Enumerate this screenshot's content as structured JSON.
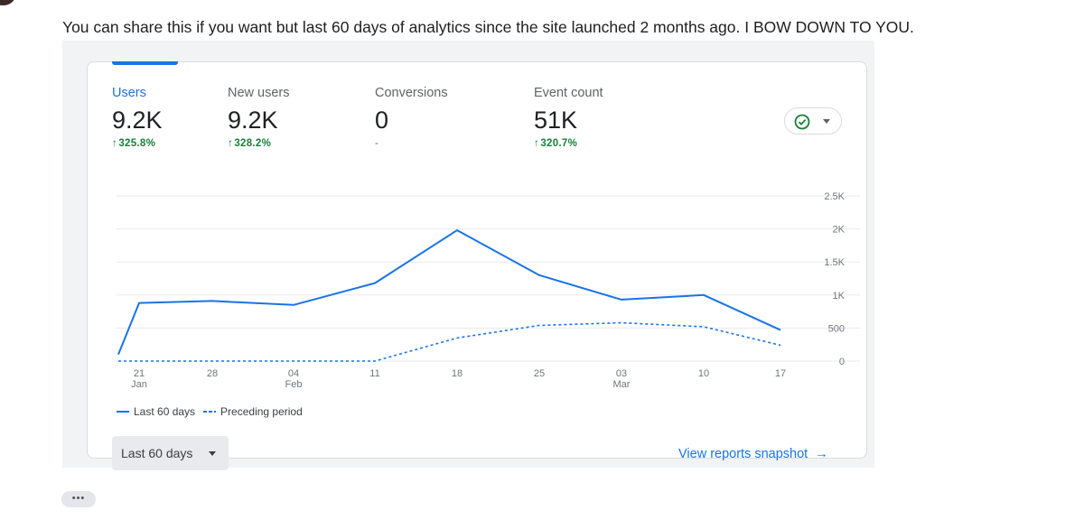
{
  "message": {
    "text": "You can share this if you want but last 60 days of analytics since the site launched 2 months ago. I BOW DOWN TO YOU."
  },
  "card": {
    "metrics": [
      {
        "label": "Users",
        "value": "9.2K",
        "change": "325.8%",
        "direction": "up",
        "selected": true
      },
      {
        "label": "New users",
        "value": "9.2K",
        "change": "328.2%",
        "direction": "up",
        "selected": false
      },
      {
        "label": "Conversions",
        "value": "0",
        "change": "-",
        "direction": "none",
        "selected": false
      },
      {
        "label": "Event count",
        "value": "51K",
        "change": "320.7%",
        "direction": "up",
        "selected": false
      }
    ],
    "status_icon": "check-circle-icon",
    "range_select": {
      "label": "Last 60 days"
    },
    "view_link": {
      "label": "View reports snapshot",
      "arrow": "→"
    }
  },
  "more_button": {
    "label": "•••"
  },
  "colors": {
    "accent": "#1a73e8",
    "positive": "#188038",
    "check": "#188038",
    "grid": "#e8eaed"
  },
  "chart_data": {
    "type": "line",
    "x": [
      "Jan 20",
      "Jan 21",
      "Jan 28",
      "Feb 04",
      "Feb 11",
      "Feb 18",
      "Feb 25",
      "Mar 03",
      "Mar 10",
      "Mar 17"
    ],
    "x_ticks": [
      {
        "day": "21",
        "month": "Jan"
      },
      {
        "day": "28",
        "month": ""
      },
      {
        "day": "04",
        "month": "Feb"
      },
      {
        "day": "11",
        "month": ""
      },
      {
        "day": "18",
        "month": ""
      },
      {
        "day": "25",
        "month": ""
      },
      {
        "day": "03",
        "month": "Mar"
      },
      {
        "day": "10",
        "month": ""
      },
      {
        "day": "17",
        "month": ""
      }
    ],
    "y_ticks": [
      "0",
      "500",
      "1K",
      "1.5K",
      "2K",
      "2.5K"
    ],
    "ylim": [
      0,
      2500
    ],
    "grid": true,
    "series": [
      {
        "name": "Last 60 days",
        "style": "solid",
        "values": [
          100,
          880,
          910,
          850,
          1180,
          1980,
          1300,
          930,
          1000,
          470
        ]
      },
      {
        "name": "Preceding period",
        "style": "dashed",
        "values": [
          0,
          0,
          0,
          0,
          0,
          350,
          540,
          580,
          520,
          240
        ]
      }
    ]
  }
}
